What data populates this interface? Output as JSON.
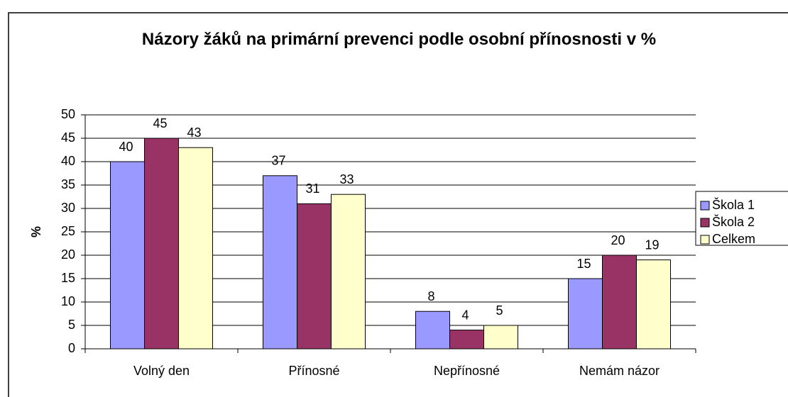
{
  "chart_data": {
    "type": "bar",
    "title": "Názory žáků na primární prevenci podle osobní přínosnosti v %",
    "y_label": "%",
    "categories": [
      "Volný den",
      "Přínosné",
      "Nepřínosné",
      "Nemám názor"
    ],
    "series": [
      {
        "name": "Škola 1",
        "color": "#9999ff",
        "values": [
          40,
          37,
          8,
          15
        ]
      },
      {
        "name": "Škola 2",
        "color": "#993366",
        "values": [
          45,
          31,
          4,
          20
        ]
      },
      {
        "name": "Celkem",
        "color": "#ffffcc",
        "values": [
          43,
          33,
          5,
          19
        ]
      }
    ],
    "ylim": [
      0,
      50
    ],
    "yticks": [
      0,
      5,
      10,
      15,
      20,
      25,
      30,
      35,
      40,
      45,
      50
    ],
    "grid": true,
    "legend": "right"
  }
}
